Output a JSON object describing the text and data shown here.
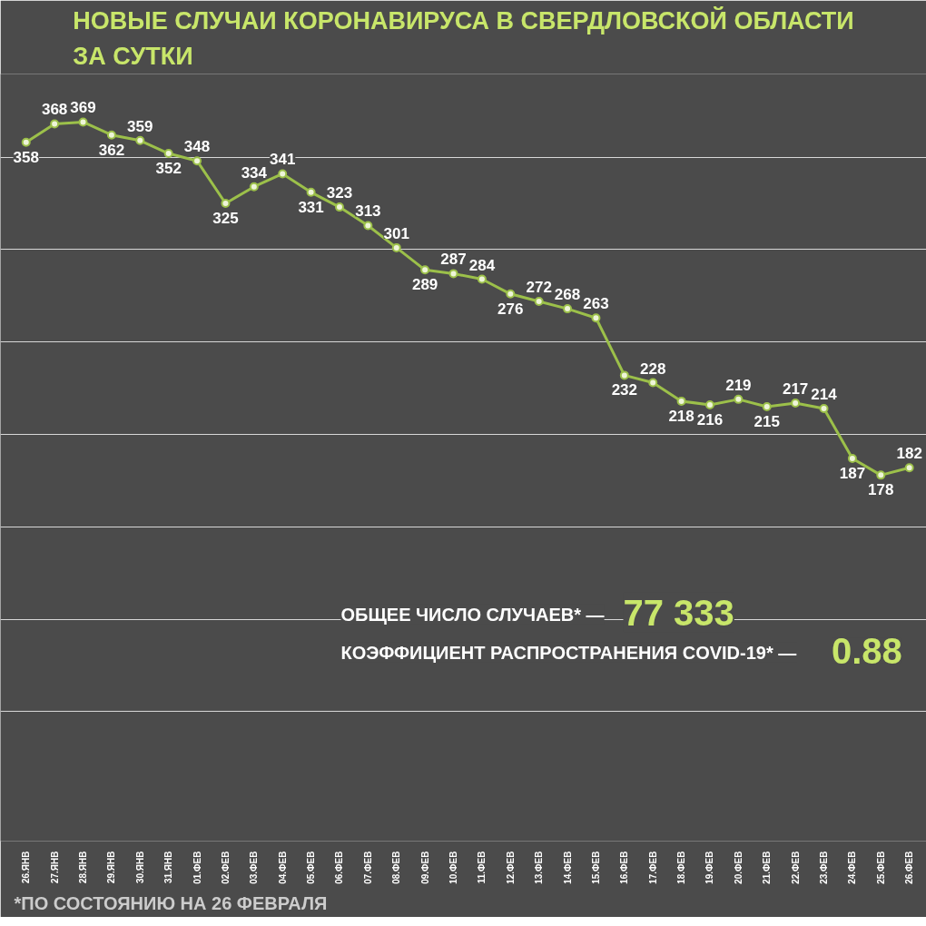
{
  "chart_data": {
    "type": "line",
    "title": "НОВЫЕ СЛУЧАИ КОРОНАВИРУСА В СВЕРДЛОВСКОЙ ОБЛАСТИ ЗА СУТКИ",
    "categories": [
      "26.ЯНВ",
      "27.ЯНВ",
      "28.ЯНВ",
      "29.ЯНВ",
      "30.ЯНВ",
      "31.ЯНВ",
      "01.ФЕВ",
      "02.ФЕВ",
      "03.ФЕВ",
      "04.ФЕВ",
      "05.ФЕВ",
      "06.ФЕВ",
      "07.ФЕВ",
      "08.ФЕВ",
      "09.ФЕВ",
      "10.ФЕВ",
      "11.ФЕВ",
      "12.ФЕВ",
      "13.ФЕВ",
      "14.ФЕВ",
      "15.ФЕВ",
      "16.ФЕВ",
      "17.ФЕВ",
      "18.ФЕВ",
      "19.ФЕВ",
      "20.ФЕВ",
      "21.ФЕВ",
      "22.ФЕВ",
      "23.ФЕВ",
      "24.ФЕВ",
      "25.ФЕВ",
      "26.ФЕВ"
    ],
    "series": [
      {
        "color": "#9cc04a",
        "values": [
          358,
          368,
          369,
          362,
          359,
          352,
          348,
          325,
          334,
          341,
          331,
          323,
          313,
          301,
          289,
          287,
          284,
          276,
          272,
          268,
          263,
          232,
          228,
          218,
          216,
          219,
          215,
          217,
          214,
          187,
          178,
          182
        ]
      }
    ],
    "data_labels": true,
    "marker": "circle",
    "ylim": [
      -20,
      395
    ],
    "yticks": [
      {
        "value": 50,
        "label": null
      },
      {
        "value": 100,
        "label": null
      },
      {
        "value": 150,
        "label": null
      },
      {
        "value": 200,
        "label": null
      },
      {
        "value": 250,
        "label": null
      },
      {
        "value": 300,
        "label": null
      },
      {
        "value": 350,
        "label": null
      }
    ],
    "grid": "y",
    "tick_labels": "x",
    "annotations": [
      "ОБЩЕЕ ЧИСЛО СЛУЧАЕВ* —",
      "77 333",
      "КОЭФФИЦИЕНТ РАСПРОСТРАНЕНИЯ COVID-19* —",
      "0.88",
      "*ПО СОСТОЯНИЮ НА 26 ФЕВРАЛЯ"
    ]
  }
}
